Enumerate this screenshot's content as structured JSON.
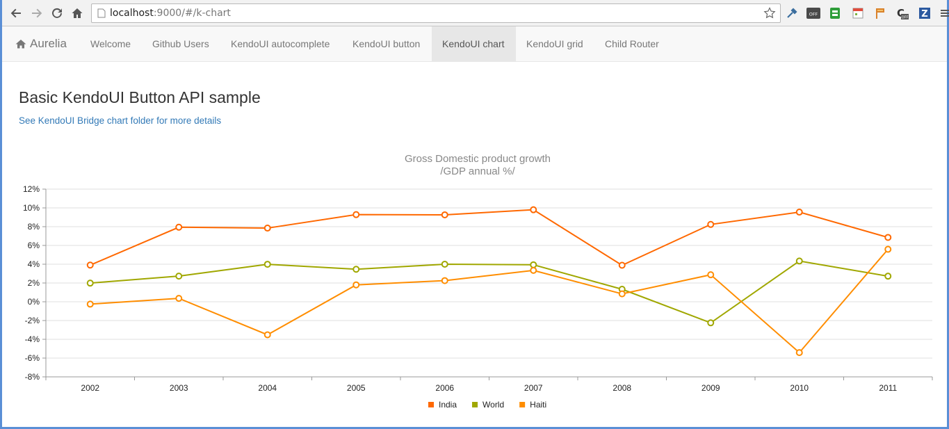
{
  "browser": {
    "url_host": "localhost",
    "url_rest": ":9000/#/k-chart"
  },
  "navbar": {
    "brand": "Aurelia",
    "items": [
      {
        "label": "Welcome",
        "active": false
      },
      {
        "label": "Github Users",
        "active": false
      },
      {
        "label": "KendoUI autocomplete",
        "active": false
      },
      {
        "label": "KendoUI button",
        "active": false
      },
      {
        "label": "KendoUI chart",
        "active": true
      },
      {
        "label": "KendoUI grid",
        "active": false
      },
      {
        "label": "Child Router",
        "active": false
      }
    ]
  },
  "main": {
    "heading": "Basic KendoUI Button API sample",
    "link": "See KendoUI Bridge chart folder for more details"
  },
  "chart_data": {
    "type": "line",
    "title": "Gross Domestic product growth",
    "subtitle": "/GDP annual %/",
    "categories": [
      "2002",
      "2003",
      "2004",
      "2005",
      "2006",
      "2007",
      "2008",
      "2009",
      "2010",
      "2011"
    ],
    "ylim": [
      -8,
      12
    ],
    "y_ticks": [
      "12%",
      "10%",
      "8%",
      "6%",
      "4%",
      "2%",
      "0%",
      "-2%",
      "-4%",
      "-6%",
      "-8%"
    ],
    "grid": true,
    "legend_position": "bottom",
    "series": [
      {
        "name": "India",
        "color": "#ff6800",
        "values": [
          3.907,
          7.943,
          7.848,
          9.284,
          9.263,
          9.801,
          3.89,
          8.238,
          9.552,
          6.855
        ]
      },
      {
        "name": "World",
        "color": "#a0a700",
        "values": [
          1.988,
          2.733,
          3.994,
          3.464,
          4.001,
          3.939,
          1.333,
          -2.245,
          4.339,
          2.727
        ]
      },
      {
        "name": "Haiti",
        "color": "#ff8d00",
        "values": [
          -0.253,
          0.362,
          -3.519,
          1.799,
          2.252,
          3.343,
          0.843,
          2.877,
          -5.416,
          5.59
        ]
      }
    ]
  }
}
